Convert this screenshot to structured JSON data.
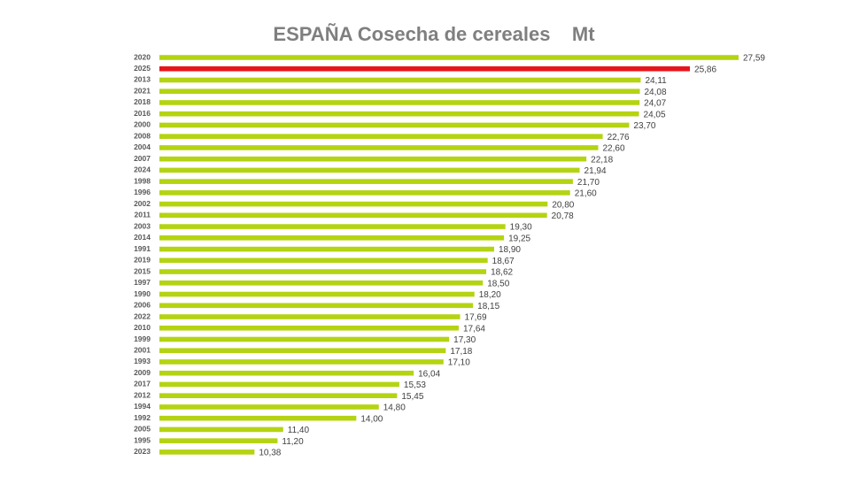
{
  "chart_data": {
    "type": "hbar",
    "title": "ESPAÑA Cosecha de cereales    Mt",
    "categories": [
      "2020",
      "2025",
      "2013",
      "2021",
      "2018",
      "2016",
      "2000",
      "2008",
      "2004",
      "2007",
      "2024",
      "1998",
      "1996",
      "2002",
      "2011",
      "2003",
      "2014",
      "1991",
      "2019",
      "2015",
      "1997",
      "1990",
      "2006",
      "2022",
      "2010",
      "1999",
      "2001",
      "1993",
      "2009",
      "2017",
      "2012",
      "1994",
      "1992",
      "2005",
      "1995",
      "2023"
    ],
    "values": [
      27.59,
      25.86,
      24.11,
      24.08,
      24.07,
      24.05,
      23.7,
      22.76,
      22.6,
      22.18,
      21.94,
      21.7,
      21.6,
      20.8,
      20.78,
      19.3,
      19.25,
      18.9,
      18.67,
      18.62,
      18.5,
      18.2,
      18.15,
      17.69,
      17.64,
      17.3,
      17.18,
      17.1,
      16.04,
      15.53,
      15.45,
      14.8,
      14.0,
      11.4,
      11.2,
      10.38
    ],
    "value_labels": [
      "27,59",
      "25,86",
      "24,11",
      "24,08",
      "24,07",
      "24,05",
      "23,70",
      "22,76",
      "22,60",
      "22,18",
      "21,94",
      "21,70",
      "21,60",
      "20,80",
      "20,78",
      "19,30",
      "19,25",
      "18,90",
      "18,67",
      "18,62",
      "18,50",
      "18,20",
      "18,15",
      "17,69",
      "17,64",
      "17,30",
      "17,18",
      "17,10",
      "16,04",
      "15,53",
      "15,45",
      "14,80",
      "14,00",
      "11,40",
      "11,20",
      "10,38"
    ],
    "colors": [
      "#b5d312",
      "#e8141b",
      "#b5d312",
      "#b5d312",
      "#b5d312",
      "#b5d312",
      "#b5d312",
      "#b5d312",
      "#b5d312",
      "#b5d312",
      "#b5d312",
      "#b5d312",
      "#b5d312",
      "#b5d312",
      "#b5d312",
      "#b5d312",
      "#b5d312",
      "#b5d312",
      "#b5d312",
      "#b5d312",
      "#b5d312",
      "#b5d312",
      "#b5d312",
      "#b5d312",
      "#b5d312",
      "#b5d312",
      "#b5d312",
      "#b5d312",
      "#b5d312",
      "#b5d312",
      "#b5d312",
      "#b5d312",
      "#b5d312",
      "#b5d312",
      "#b5d312",
      "#b5d312"
    ],
    "xlim": [
      7,
      28
    ]
  }
}
